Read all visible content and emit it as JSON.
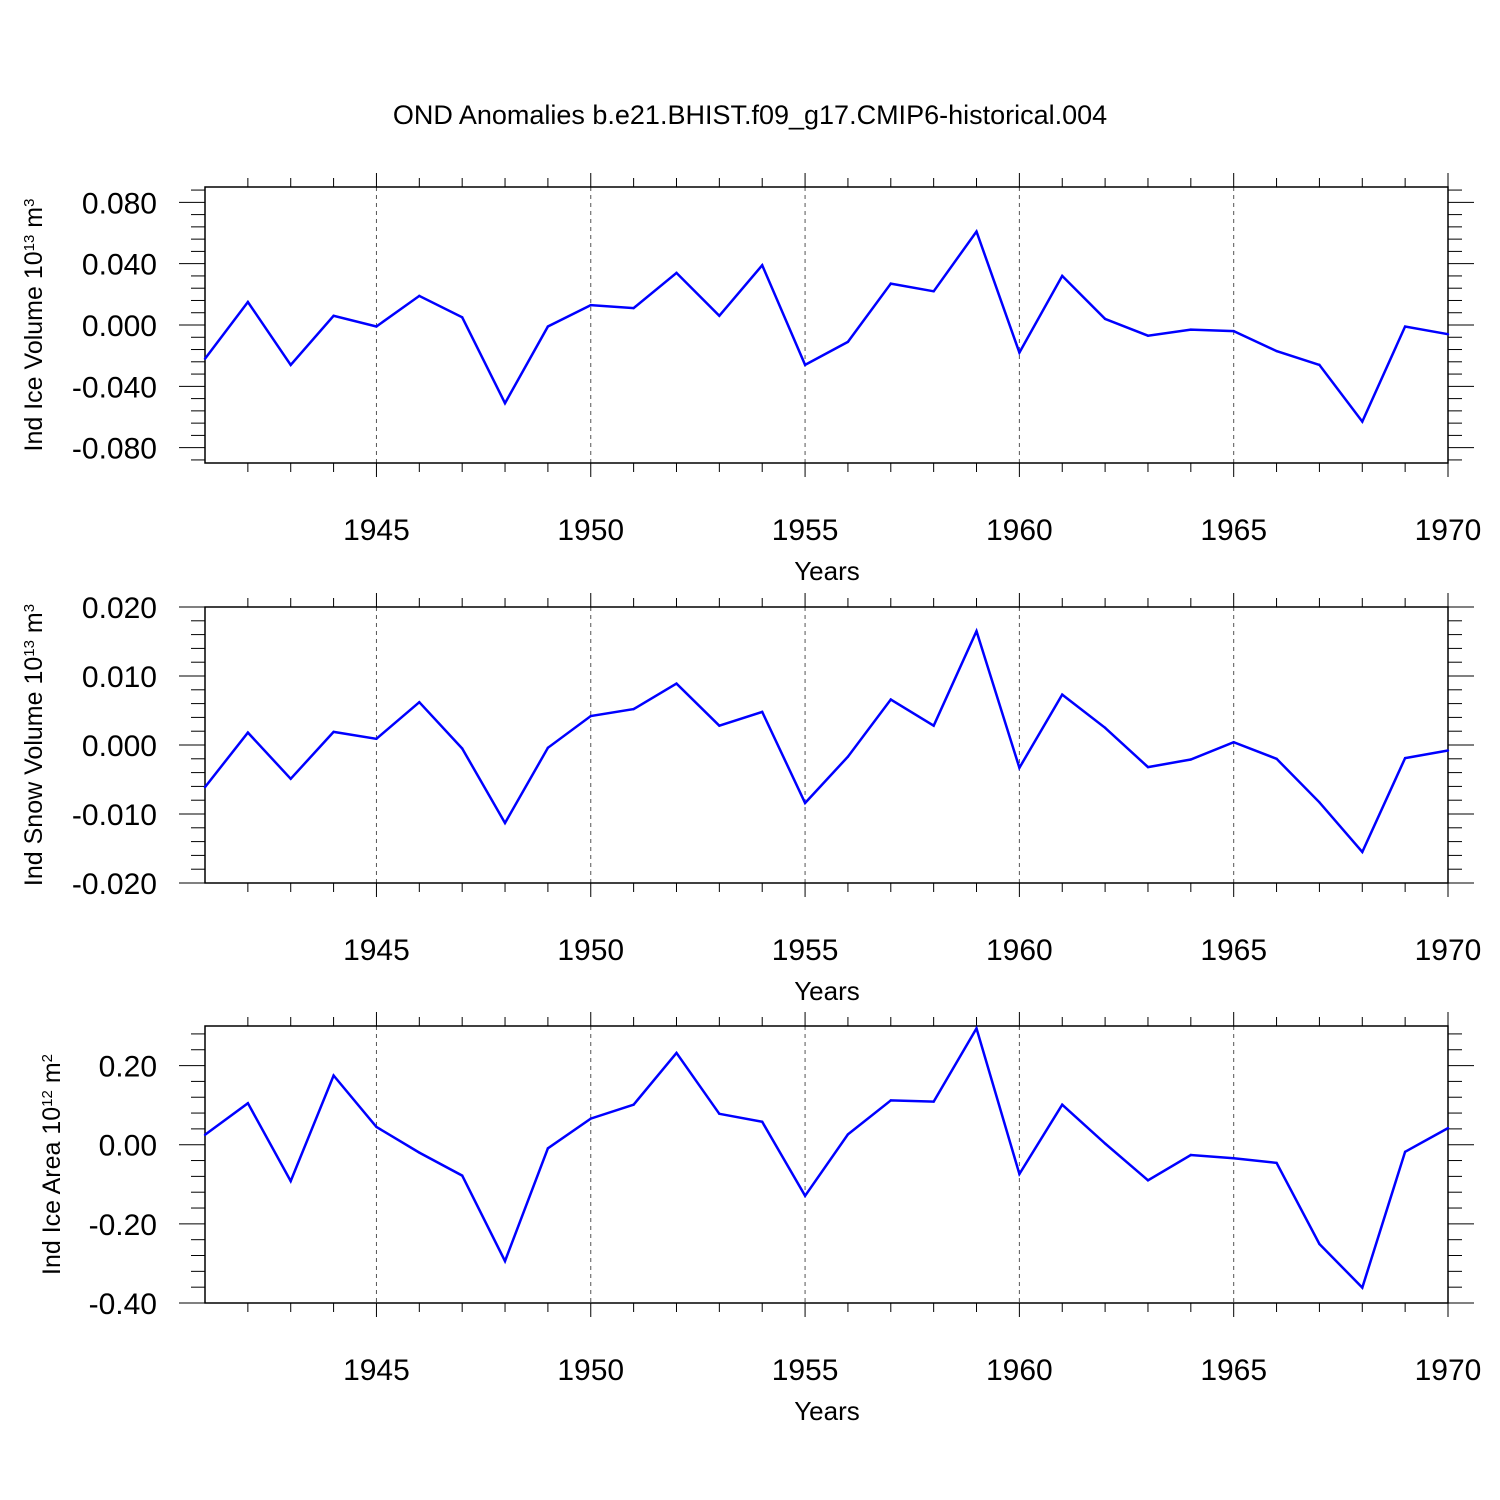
{
  "chart_data": {
    "title": "OND Anomalies b.e21.BHIST.f09_g17.CMIP6-historical.004",
    "type": "line",
    "xlabel": "Years",
    "xlim": [
      1941,
      1970
    ],
    "xticks": [
      1945,
      1950,
      1955,
      1960,
      1965,
      1970
    ],
    "xtick_labels": [
      "1945",
      "1950",
      "1955",
      "1960",
      "1965",
      "1970"
    ],
    "line_color": "#0000ff",
    "grid_color": "#555555",
    "panels": [
      {
        "ylabel": {
          "text": "Ind Ice Volume 10",
          "sup1": "13",
          "unit": " m",
          "sup2": "3"
        },
        "ylim": [
          -0.09,
          0.09
        ],
        "yticks": [
          0.08,
          0.04,
          0.0,
          -0.04,
          -0.08
        ],
        "ytick_labels": [
          "0.080",
          "0.040",
          "0.000",
          "-0.040",
          "-0.080"
        ],
        "x": [
          1941,
          1942,
          1943,
          1944,
          1945,
          1946,
          1947,
          1948,
          1949,
          1950,
          1951,
          1952,
          1953,
          1954,
          1955,
          1956,
          1957,
          1958,
          1959,
          1960,
          1961,
          1962,
          1963,
          1964,
          1965,
          1966,
          1967,
          1968,
          1969,
          1970
        ],
        "values": [
          -0.022,
          0.015,
          -0.026,
          0.006,
          -0.001,
          0.019,
          0.005,
          -0.051,
          -0.001,
          0.013,
          0.011,
          0.034,
          0.006,
          0.039,
          -0.026,
          -0.011,
          0.027,
          0.022,
          0.061,
          -0.018,
          0.032,
          0.004,
          -0.007,
          -0.003,
          -0.004,
          -0.017,
          -0.026,
          -0.063,
          -0.001,
          -0.006
        ]
      },
      {
        "ylabel": {
          "text": "Ind Snow Volume 10",
          "sup1": "13",
          "unit": " m",
          "sup2": "3"
        },
        "ylim": [
          -0.02,
          0.02
        ],
        "yticks": [
          0.02,
          0.01,
          0.0,
          -0.01,
          -0.02
        ],
        "ytick_labels": [
          "0.020",
          "0.010",
          "0.000",
          "-0.010",
          "-0.020"
        ],
        "x": [
          1941,
          1942,
          1943,
          1944,
          1945,
          1946,
          1947,
          1948,
          1949,
          1950,
          1951,
          1952,
          1953,
          1954,
          1955,
          1956,
          1957,
          1958,
          1959,
          1960,
          1961,
          1962,
          1963,
          1964,
          1965,
          1966,
          1967,
          1968,
          1969,
          1970
        ],
        "values": [
          -0.0061,
          0.0018,
          -0.0049,
          0.0019,
          0.0009,
          0.0062,
          -0.0005,
          -0.0113,
          -0.0004,
          0.0042,
          0.0052,
          0.0089,
          0.0028,
          0.0048,
          -0.0084,
          -0.0017,
          0.0066,
          0.0028,
          0.0165,
          -0.0033,
          0.0073,
          0.0025,
          -0.0032,
          -0.0021,
          0.0004,
          -0.002,
          -0.0083,
          -0.0155,
          -0.0019,
          -0.0008
        ]
      },
      {
        "ylabel": {
          "text": "Ind Ice Area 10",
          "sup1": "12",
          "unit": " m",
          "sup2": "2"
        },
        "ylim": [
          -0.4,
          0.3
        ],
        "yticks": [
          0.2,
          0.0,
          -0.2,
          -0.4
        ],
        "ytick_labels": [
          "0.20",
          "0.00",
          "-0.20",
          "-0.40"
        ],
        "x": [
          1941,
          1942,
          1943,
          1944,
          1945,
          1946,
          1947,
          1948,
          1949,
          1950,
          1951,
          1952,
          1953,
          1954,
          1955,
          1956,
          1957,
          1958,
          1959,
          1960,
          1961,
          1962,
          1963,
          1964,
          1965,
          1966,
          1967,
          1968,
          1969,
          1970
        ],
        "values": [
          0.025,
          0.105,
          -0.092,
          0.175,
          0.045,
          -0.02,
          -0.078,
          -0.294,
          -0.009,
          0.066,
          0.101,
          0.232,
          0.078,
          0.058,
          -0.129,
          0.026,
          0.112,
          0.109,
          0.294,
          -0.074,
          0.101,
          0.003,
          -0.09,
          -0.026,
          -0.034,
          -0.046,
          -0.251,
          -0.361,
          -0.018,
          0.042
        ]
      }
    ]
  }
}
